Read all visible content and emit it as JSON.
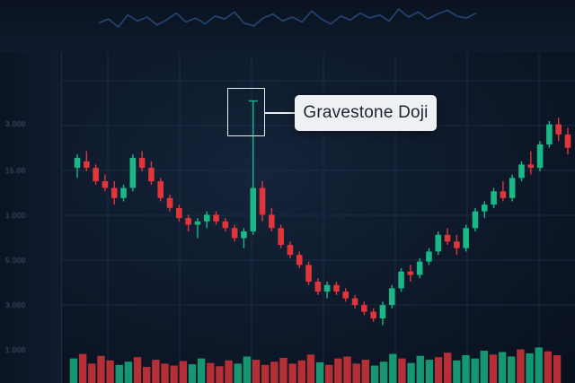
{
  "annotation": {
    "label": "Gravestone Doji"
  },
  "colors": {
    "up": "#19b886",
    "down": "#e0363b",
    "grid": "#1c2b42",
    "line": "#3d6fb5"
  },
  "axis": {
    "tick_labels": [
      "3.000",
      "15.00",
      "1.000",
      "5.000",
      "3.000",
      "1.000"
    ]
  },
  "chart_data": {
    "type": "candlestick",
    "title": "",
    "annotation": "Gravestone Doji",
    "annotated_index": 19,
    "ohlc": [
      [
        62,
        66,
        59,
        65
      ],
      [
        64,
        67,
        61,
        62
      ],
      [
        62,
        63,
        57,
        58
      ],
      [
        58,
        60,
        55,
        56
      ],
      [
        56,
        58,
        51,
        53
      ],
      [
        53,
        57,
        52,
        56
      ],
      [
        56,
        66,
        55,
        65
      ],
      [
        65,
        67,
        61,
        62
      ],
      [
        62,
        64,
        57,
        58
      ],
      [
        58,
        59,
        52,
        53
      ],
      [
        53,
        54,
        49,
        50
      ],
      [
        50,
        51,
        46,
        47
      ],
      [
        47,
        48,
        43,
        45
      ],
      [
        45,
        47,
        41,
        46
      ],
      [
        46,
        49,
        44,
        48
      ],
      [
        48,
        49,
        45,
        46
      ],
      [
        46,
        47,
        43,
        44
      ],
      [
        44,
        45,
        40,
        41
      ],
      [
        41,
        44,
        38,
        43
      ],
      [
        43,
        82,
        42,
        56
      ],
      [
        56,
        58,
        46,
        48
      ],
      [
        48,
        50,
        43,
        44
      ],
      [
        44,
        45,
        38,
        39
      ],
      [
        39,
        40,
        35,
        36
      ],
      [
        36,
        37,
        32,
        33
      ],
      [
        33,
        34,
        27,
        28
      ],
      [
        28,
        29,
        24,
        25
      ],
      [
        25,
        28,
        23,
        27
      ],
      [
        27,
        28,
        24,
        25
      ],
      [
        25,
        26,
        22,
        23
      ],
      [
        23,
        24,
        20,
        21
      ],
      [
        21,
        22,
        18,
        19
      ],
      [
        19,
        20,
        16,
        17
      ],
      [
        17,
        22,
        15,
        21
      ],
      [
        21,
        27,
        20,
        26
      ],
      [
        26,
        32,
        25,
        31
      ],
      [
        31,
        33,
        28,
        30
      ],
      [
        30,
        35,
        29,
        34
      ],
      [
        34,
        38,
        33,
        37
      ],
      [
        37,
        43,
        36,
        42
      ],
      [
        42,
        44,
        39,
        40
      ],
      [
        40,
        42,
        36,
        38
      ],
      [
        38,
        45,
        37,
        44
      ],
      [
        44,
        50,
        43,
        49
      ],
      [
        49,
        52,
        47,
        51
      ],
      [
        51,
        56,
        50,
        55
      ],
      [
        55,
        58,
        52,
        53
      ],
      [
        53,
        60,
        52,
        59
      ],
      [
        59,
        64,
        58,
        63
      ],
      [
        63,
        67,
        60,
        62
      ],
      [
        62,
        70,
        61,
        69
      ],
      [
        69,
        76,
        68,
        75
      ],
      [
        75,
        77,
        70,
        72
      ],
      [
        72,
        74,
        66,
        68
      ]
    ],
    "volume": [
      38,
      45,
      30,
      42,
      35,
      28,
      33,
      40,
      25,
      36,
      30,
      27,
      34,
      29,
      38,
      31,
      26,
      35,
      30,
      41,
      36,
      28,
      33,
      39,
      30,
      35,
      44,
      32,
      28,
      38,
      41,
      30,
      36,
      27,
      33,
      45,
      38,
      31,
      42,
      36,
      40,
      47,
      35,
      43,
      38,
      50,
      44,
      48,
      41,
      52,
      46,
      55,
      49,
      43
    ],
    "top_line": [
      14,
      18,
      10,
      22,
      16,
      20,
      12,
      17,
      24,
      15,
      19,
      13,
      21,
      18,
      25,
      14,
      11,
      19,
      23,
      16,
      20,
      15,
      26,
      18,
      13,
      21,
      17,
      24,
      19,
      22,
      16,
      28,
      20,
      25,
      18,
      23,
      27,
      21,
      19,
      24
    ]
  }
}
